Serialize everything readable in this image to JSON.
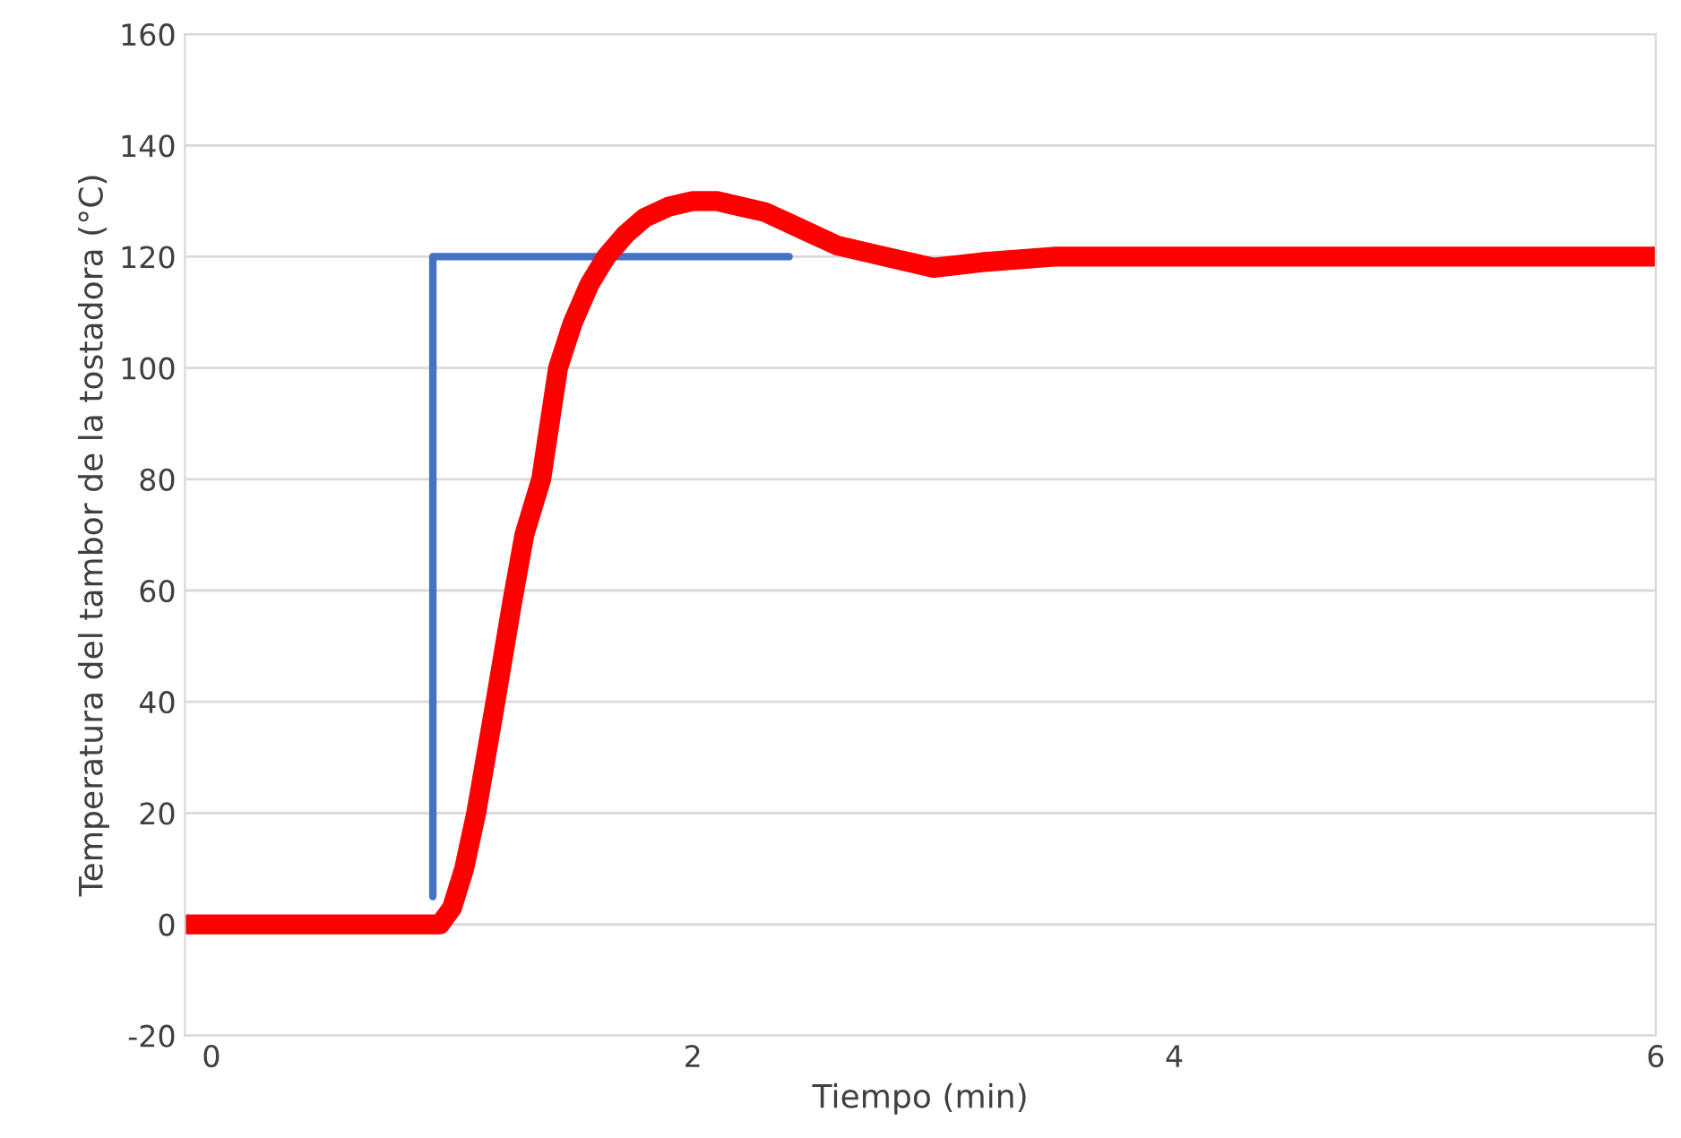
{
  "chart_data": {
    "type": "line",
    "xlabel": "Tiempo (min)",
    "ylabel": "Temperatura del tambor de la tostadora (°C)",
    "xlim": [
      -0.11,
      6.0
    ],
    "xticks": [
      0,
      2,
      4,
      6
    ],
    "ylim": [
      -20,
      160
    ],
    "yticks": [
      -20,
      0,
      20,
      40,
      60,
      80,
      100,
      120,
      140,
      160
    ],
    "grid": "y",
    "series": [
      {
        "color": "#4472c4",
        "x": [
          0.92,
          0.92,
          2.4
        ],
        "values": [
          5,
          120,
          120
        ]
      },
      {
        "color": "#ff0000",
        "x": [
          -0.11,
          0.2,
          0.5,
          0.8,
          0.95,
          1.0,
          1.05,
          1.1,
          1.18,
          1.25,
          1.3,
          1.37,
          1.44,
          1.5,
          1.57,
          1.64,
          1.72,
          1.8,
          1.9,
          2.0,
          2.1,
          2.2,
          2.3,
          2.4,
          2.5,
          2.6,
          2.7,
          2.8,
          2.9,
          3.0,
          3.2,
          3.5,
          4.0,
          4.5,
          5.0,
          5.5,
          6.0
        ],
        "values": [
          0,
          0,
          0,
          0,
          0,
          3,
          10,
          20,
          40,
          58,
          70,
          80,
          100,
          108,
          115,
          120,
          124,
          127,
          129,
          130,
          130,
          129,
          128,
          126,
          124,
          122,
          121,
          120,
          119,
          118,
          119,
          120,
          120,
          120,
          120,
          120,
          120
        ]
      }
    ]
  }
}
